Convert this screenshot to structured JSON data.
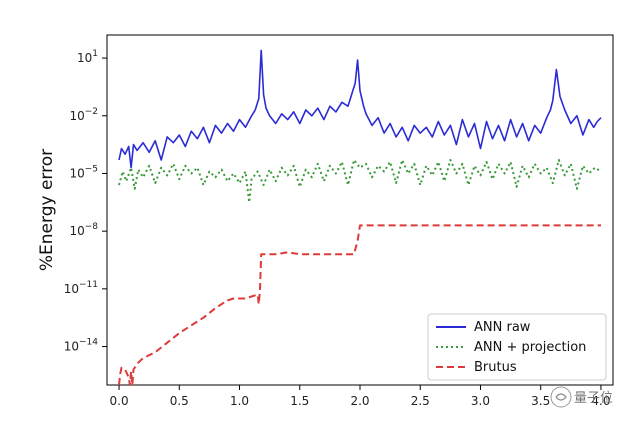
{
  "chart_data": {
    "type": "line",
    "ylabel": "%Energy error",
    "xlabel": "",
    "xlim": [
      -0.1,
      4.1
    ],
    "ylim_log10": [
      -16,
      2.2
    ],
    "yscale": "log",
    "grid": false,
    "legend_position": "lower-right",
    "x_ticks": [
      {
        "v": 0.0,
        "label": "0.0"
      },
      {
        "v": 0.5,
        "label": "0.5"
      },
      {
        "v": 1.0,
        "label": "1.0"
      },
      {
        "v": 1.5,
        "label": "1.5"
      },
      {
        "v": 2.0,
        "label": "2.0"
      },
      {
        "v": 2.5,
        "label": "2.5"
      },
      {
        "v": 3.0,
        "label": "3.0"
      },
      {
        "v": 3.5,
        "label": "3.5"
      },
      {
        "v": 4.0,
        "label": "4.0"
      }
    ],
    "y_ticks": [
      {
        "exp": 1,
        "base": "10",
        "sup": "1"
      },
      {
        "exp": -2,
        "base": "10",
        "sup": "−2"
      },
      {
        "exp": -5,
        "base": "10",
        "sup": "−5"
      },
      {
        "exp": -8,
        "base": "10",
        "sup": "−8"
      },
      {
        "exp": -11,
        "base": "10",
        "sup": "−11"
      },
      {
        "exp": -14,
        "base": "10",
        "sup": "−14"
      }
    ],
    "series": [
      {
        "name": "ANN raw",
        "color": "#2b2bd6",
        "style": "solid",
        "x": [
          0.0,
          0.02,
          0.05,
          0.08,
          0.1,
          0.12,
          0.15,
          0.2,
          0.25,
          0.3,
          0.35,
          0.4,
          0.45,
          0.5,
          0.55,
          0.6,
          0.65,
          0.7,
          0.75,
          0.8,
          0.85,
          0.9,
          0.95,
          1.0,
          1.05,
          1.1,
          1.13,
          1.16,
          1.18,
          1.2,
          1.22,
          1.25,
          1.3,
          1.35,
          1.4,
          1.45,
          1.5,
          1.55,
          1.6,
          1.65,
          1.7,
          1.75,
          1.8,
          1.85,
          1.9,
          1.93,
          1.96,
          1.98,
          2.0,
          2.03,
          2.05,
          2.1,
          2.15,
          2.2,
          2.25,
          2.3,
          2.35,
          2.4,
          2.45,
          2.5,
          2.55,
          2.6,
          2.65,
          2.7,
          2.75,
          2.8,
          2.85,
          2.9,
          2.95,
          3.0,
          3.05,
          3.1,
          3.15,
          3.2,
          3.25,
          3.3,
          3.35,
          3.4,
          3.45,
          3.5,
          3.55,
          3.58,
          3.6,
          3.63,
          3.66,
          3.7,
          3.75,
          3.8,
          3.85,
          3.9,
          3.94,
          3.97,
          4.0
        ],
        "y_log10": [
          -4.3,
          -3.7,
          -4.0,
          -3.6,
          -4.7,
          -3.5,
          -3.8,
          -3.4,
          -3.9,
          -3.3,
          -4.3,
          -3.1,
          -3.4,
          -3.0,
          -3.6,
          -2.8,
          -3.2,
          -2.6,
          -3.4,
          -2.5,
          -2.9,
          -2.4,
          -2.8,
          -2.2,
          -2.6,
          -2.0,
          -1.7,
          -1.1,
          1.4,
          -0.9,
          -1.6,
          -2.0,
          -2.4,
          -1.9,
          -2.2,
          -1.8,
          -2.4,
          -1.7,
          -2.0,
          -1.6,
          -2.2,
          -1.5,
          -1.8,
          -1.3,
          -1.5,
          -0.9,
          -0.3,
          0.9,
          -0.7,
          -1.5,
          -1.9,
          -2.5,
          -2.1,
          -2.9,
          -2.4,
          -3.1,
          -2.6,
          -3.3,
          -2.5,
          -2.9,
          -2.6,
          -3.1,
          -2.3,
          -3.0,
          -2.5,
          -3.5,
          -2.2,
          -3.1,
          -2.4,
          -3.7,
          -2.3,
          -3.2,
          -2.5,
          -3.3,
          -2.2,
          -3.1,
          -2.4,
          -3.3,
          -2.5,
          -2.9,
          -2.1,
          -1.7,
          -1.2,
          0.4,
          -1.0,
          -1.7,
          -2.4,
          -2.0,
          -3.0,
          -2.2,
          -2.6,
          -2.3,
          -2.1
        ]
      },
      {
        "name": "ANN + projection",
        "color": "#3a9a3a",
        "style": "dotted",
        "x": [
          0.0,
          0.03,
          0.06,
          0.1,
          0.13,
          0.16,
          0.2,
          0.25,
          0.3,
          0.35,
          0.4,
          0.45,
          0.5,
          0.55,
          0.6,
          0.65,
          0.7,
          0.75,
          0.8,
          0.85,
          0.9,
          0.95,
          1.0,
          1.05,
          1.08,
          1.1,
          1.15,
          1.2,
          1.25,
          1.3,
          1.35,
          1.4,
          1.45,
          1.5,
          1.55,
          1.6,
          1.65,
          1.7,
          1.75,
          1.8,
          1.85,
          1.9,
          1.95,
          2.0,
          2.05,
          2.1,
          2.15,
          2.2,
          2.25,
          2.3,
          2.35,
          2.4,
          2.45,
          2.5,
          2.55,
          2.6,
          2.65,
          2.7,
          2.75,
          2.8,
          2.85,
          2.9,
          2.95,
          3.0,
          3.05,
          3.1,
          3.15,
          3.2,
          3.25,
          3.3,
          3.35,
          3.4,
          3.45,
          3.5,
          3.55,
          3.6,
          3.65,
          3.7,
          3.75,
          3.8,
          3.85,
          3.9,
          3.95,
          4.0
        ],
        "y_log10": [
          -5.6,
          -4.9,
          -5.4,
          -4.7,
          -5.8,
          -4.8,
          -5.2,
          -4.6,
          -5.5,
          -4.7,
          -5.1,
          -4.5,
          -5.3,
          -4.6,
          -5.0,
          -4.7,
          -5.6,
          -4.9,
          -5.2,
          -4.8,
          -5.4,
          -5.0,
          -5.5,
          -4.9,
          -6.5,
          -5.3,
          -4.9,
          -5.6,
          -4.8,
          -5.4,
          -4.7,
          -5.1,
          -4.6,
          -5.7,
          -4.8,
          -5.2,
          -4.5,
          -5.4,
          -4.6,
          -5.0,
          -4.4,
          -5.6,
          -4.3,
          -4.7,
          -4.5,
          -5.2,
          -4.6,
          -4.9,
          -4.4,
          -5.5,
          -4.3,
          -5.0,
          -4.5,
          -5.6,
          -4.6,
          -5.1,
          -4.4,
          -5.4,
          -4.3,
          -5.0,
          -4.5,
          -5.6,
          -4.6,
          -5.1,
          -4.4,
          -5.3,
          -4.5,
          -5.0,
          -4.4,
          -5.7,
          -4.6,
          -5.2,
          -4.5,
          -5.0,
          -4.7,
          -5.5,
          -4.3,
          -5.1,
          -4.5,
          -5.8,
          -4.6,
          -5.0,
          -4.7,
          -4.9
        ]
      },
      {
        "name": "Brutus",
        "color": "#dd3a3a",
        "style": "dashed",
        "x": [
          0.0,
          0.01,
          0.02,
          0.05,
          0.08,
          0.09,
          0.1,
          0.11,
          0.12,
          0.15,
          0.2,
          0.3,
          0.4,
          0.5,
          0.6,
          0.7,
          0.8,
          0.9,
          0.95,
          1.0,
          1.05,
          1.1,
          1.15,
          1.16,
          1.17,
          1.18,
          1.19,
          1.2,
          1.3,
          1.4,
          1.5,
          1.6,
          1.7,
          1.8,
          1.9,
          1.95,
          1.98,
          2.0,
          2.1,
          2.5,
          3.0,
          3.5,
          4.0
        ],
        "y_log10": [
          -16.0,
          -15.4,
          -15.1,
          -15.2,
          -15.6,
          -16.0,
          -15.3,
          -16.0,
          -15.2,
          -14.9,
          -14.6,
          -14.3,
          -13.8,
          -13.3,
          -12.9,
          -12.5,
          -12.0,
          -11.6,
          -11.5,
          -11.5,
          -11.5,
          -11.4,
          -11.3,
          -11.8,
          -11.0,
          -9.2,
          -9.2,
          -9.2,
          -9.2,
          -9.1,
          -9.2,
          -9.2,
          -9.2,
          -9.2,
          -9.2,
          -9.2,
          -8.5,
          -7.7,
          -7.7,
          -7.7,
          -7.7,
          -7.7,
          -7.7
        ]
      }
    ]
  },
  "watermark": {
    "text": "量子位"
  }
}
